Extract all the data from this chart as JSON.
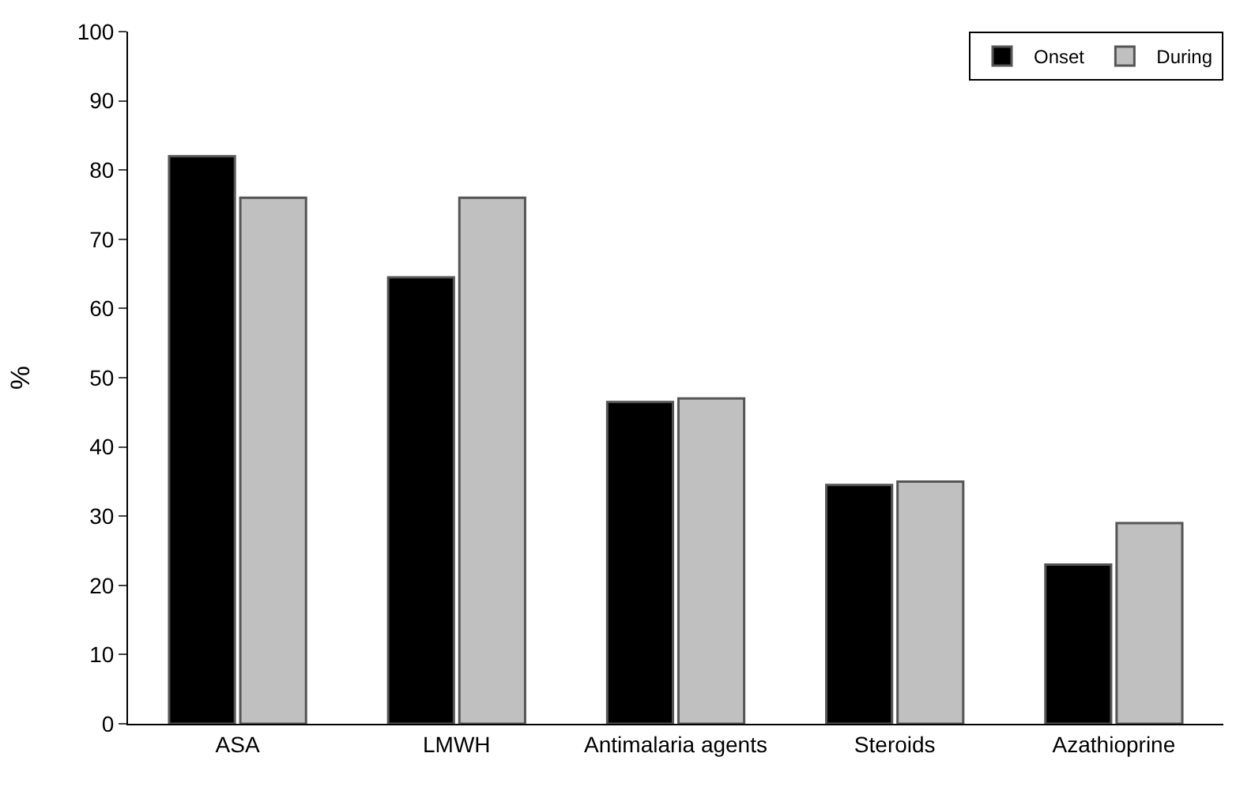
{
  "chart_data": {
    "type": "bar",
    "ylabel": "%",
    "categories": [
      "ASA",
      "LMWH",
      "Antimalaria agents",
      "Steroids",
      "Azathioprine"
    ],
    "series": [
      {
        "name": "Onset",
        "color": "#000000",
        "values": [
          82,
          64.5,
          46.5,
          34.5,
          23
        ]
      },
      {
        "name": "During",
        "color": "#c0c0c0",
        "values": [
          76,
          76,
          47,
          35,
          29
        ]
      }
    ],
    "ylim": [
      0,
      100
    ],
    "yticks": [
      0,
      10,
      20,
      30,
      40,
      50,
      60,
      70,
      80,
      90,
      100
    ],
    "legend": "top right"
  }
}
